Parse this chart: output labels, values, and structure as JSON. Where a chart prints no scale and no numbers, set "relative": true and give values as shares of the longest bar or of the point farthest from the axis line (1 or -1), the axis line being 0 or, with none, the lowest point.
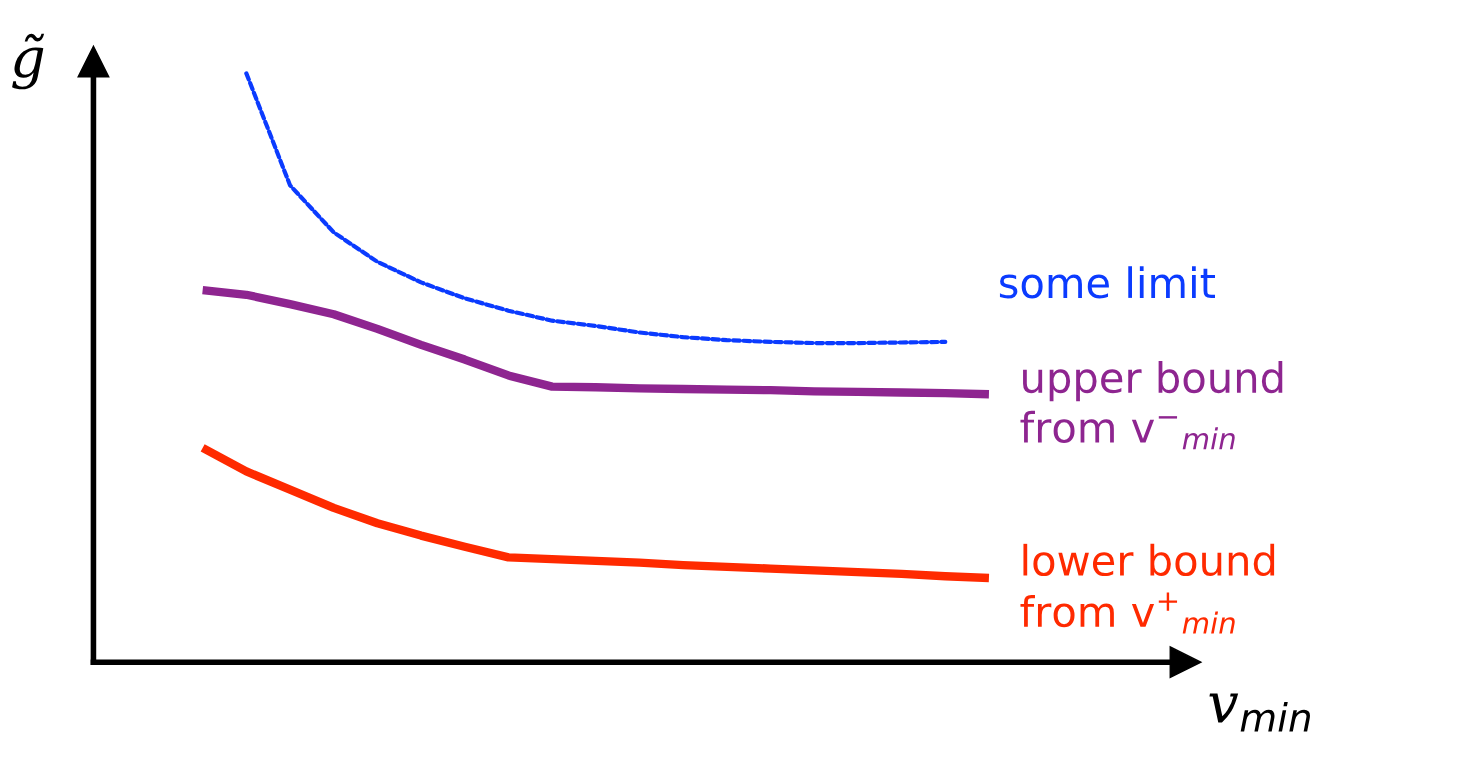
{
  "chart_data": {
    "type": "line",
    "relative": true,
    "xlabel": "v$_{min}$",
    "ylabel": "g̃",
    "grid": false,
    "legend": false,
    "marker": "none",
    "categories": [
      null,
      null,
      null,
      null,
      null,
      null,
      null,
      null,
      null,
      null,
      null,
      null,
      null,
      null,
      null,
      null,
      null,
      null,
      null,
      null,
      null,
      null,
      null,
      null,
      null
    ],
    "series": [
      {
        "name": "some limit",
        "color": "#0b3bff",
        "line_style": "dashed",
        "values": [
          null,
          null,
          null,
          1.0,
          0.81,
          0.73,
          0.68,
          0.645,
          0.618,
          0.597,
          0.58,
          0.571,
          0.56,
          0.552,
          0.547,
          0.544,
          0.542,
          0.542,
          0.543,
          0.544,
          null,
          null,
          null,
          null,
          null
        ]
      },
      {
        "name": "upper bound\nfrom v$^{−}$$_{min}$",
        "color": "#8e2590",
        "line_style": "solid",
        "values": [
          null,
          null,
          0.632,
          0.624,
          0.608,
          0.591,
          0.566,
          0.539,
          0.514,
          0.487,
          0.468,
          0.467,
          0.465,
          0.464,
          0.463,
          0.462,
          0.46,
          0.459,
          0.458,
          0.457,
          0.455,
          null,
          null,
          null,
          null
        ]
      },
      {
        "name": "lower bound\nfrom v$^{+}$$_{min}$",
        "color": "#ff2a00",
        "line_style": "solid",
        "values": [
          null,
          null,
          0.364,
          0.324,
          0.293,
          0.262,
          0.236,
          0.215,
          0.196,
          0.178,
          0.175,
          0.172,
          0.169,
          0.165,
          0.162,
          0.159,
          0.156,
          0.153,
          0.15,
          0.146,
          0.143,
          null,
          null,
          null,
          null
        ]
      }
    ]
  }
}
